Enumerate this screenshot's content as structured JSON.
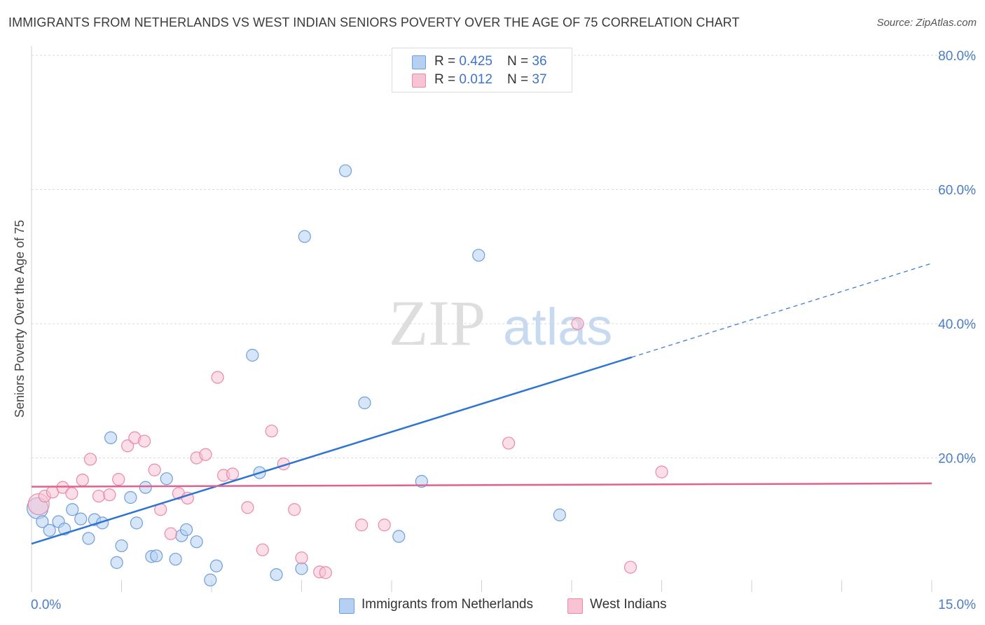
{
  "header": {
    "title": "IMMIGRANTS FROM NETHERLANDS VS WEST INDIAN SENIORS POVERTY OVER THE AGE OF 75 CORRELATION CHART",
    "source": "Source: ZipAtlas.com"
  },
  "legend": {
    "items": [
      {
        "r_label": "R = ",
        "r_value": "0.425",
        "n_label": "N = ",
        "n_value": "36"
      },
      {
        "r_label": "R = ",
        "r_value": "0.012",
        "n_label": "N = ",
        "n_value": "37"
      }
    ]
  },
  "watermark": {
    "part1": "ZIP",
    "part2": "atlas"
  },
  "colors": {
    "blue_fill": "#b5d0f2",
    "blue_stroke": "#6f9fd8",
    "blue_line": "#2f74d0",
    "pink_fill": "#f8c3d3",
    "pink_stroke": "#e88aa8",
    "pink_line": "#e2628f",
    "tick_text": "#4a7cc7"
  },
  "chart_data": {
    "type": "scatter",
    "title": "IMMIGRANTS FROM NETHERLANDS VS WEST INDIAN SENIORS POVERTY OVER THE AGE OF 75 CORRELATION CHART",
    "xlabel": "",
    "ylabel": "Seniors Poverty Over the Age of 75",
    "xlim": [
      0,
      15
    ],
    "ylim": [
      0,
      80
    ],
    "x_tick_labels": [
      "0.0%",
      "15.0%"
    ],
    "y_ticks": [
      20,
      40,
      60,
      80
    ],
    "y_tick_labels": [
      "20.0%",
      "40.0%",
      "60.0%",
      "80.0%"
    ],
    "grid": true,
    "legend_position": "top-center",
    "series": [
      {
        "name": "Immigrants from Netherlands",
        "color": "#6f9fd8",
        "r": 0.425,
        "n": 36,
        "trend": {
          "x0": 0,
          "y0": 7.2,
          "x1": 10.0,
          "y1": 35.0,
          "dash_x1": 15.0,
          "dash_y1": 49.0
        },
        "points": [
          [
            0.1,
            12.5
          ],
          [
            0.18,
            10.5
          ],
          [
            0.3,
            9.2
          ],
          [
            0.45,
            10.5
          ],
          [
            0.55,
            9.4
          ],
          [
            0.68,
            12.3
          ],
          [
            0.82,
            10.9
          ],
          [
            0.95,
            8.0
          ],
          [
            1.05,
            10.8
          ],
          [
            1.18,
            10.3
          ],
          [
            1.32,
            23.0
          ],
          [
            1.42,
            4.4
          ],
          [
            1.5,
            6.9
          ],
          [
            1.65,
            14.1
          ],
          [
            1.75,
            10.3
          ],
          [
            1.9,
            15.6
          ],
          [
            2.0,
            5.3
          ],
          [
            2.08,
            5.4
          ],
          [
            2.25,
            16.9
          ],
          [
            2.4,
            4.9
          ],
          [
            2.5,
            8.4
          ],
          [
            2.58,
            9.3
          ],
          [
            2.75,
            7.5
          ],
          [
            2.98,
            1.8
          ],
          [
            3.08,
            3.9
          ],
          [
            3.68,
            35.3
          ],
          [
            3.8,
            17.8
          ],
          [
            4.08,
            2.6
          ],
          [
            4.5,
            3.5
          ],
          [
            4.55,
            53.0
          ],
          [
            5.23,
            62.8
          ],
          [
            5.55,
            28.2
          ],
          [
            6.12,
            8.3
          ],
          [
            6.5,
            16.5
          ],
          [
            7.45,
            50.2
          ],
          [
            8.8,
            11.5
          ]
        ]
      },
      {
        "name": "West Indians",
        "color": "#e88aa8",
        "r": 0.012,
        "n": 37,
        "trend": {
          "x0": 0,
          "y0": 15.7,
          "x1": 15.0,
          "y1": 16.2
        },
        "points": [
          [
            0.12,
            13.1
          ],
          [
            0.22,
            14.3
          ],
          [
            0.35,
            14.9
          ],
          [
            0.52,
            15.6
          ],
          [
            0.67,
            14.7
          ],
          [
            0.85,
            16.7
          ],
          [
            0.98,
            19.8
          ],
          [
            1.12,
            14.3
          ],
          [
            1.3,
            14.5
          ],
          [
            1.45,
            16.8
          ],
          [
            1.6,
            21.8
          ],
          [
            1.72,
            23.0
          ],
          [
            1.88,
            22.5
          ],
          [
            2.05,
            18.2
          ],
          [
            2.15,
            12.3
          ],
          [
            2.32,
            8.7
          ],
          [
            2.45,
            14.7
          ],
          [
            2.6,
            14.0
          ],
          [
            2.75,
            20.0
          ],
          [
            2.9,
            20.5
          ],
          [
            3.1,
            32.0
          ],
          [
            3.2,
            17.4
          ],
          [
            3.35,
            17.6
          ],
          [
            3.6,
            12.6
          ],
          [
            3.85,
            6.3
          ],
          [
            4.0,
            24.0
          ],
          [
            4.2,
            19.1
          ],
          [
            4.38,
            12.3
          ],
          [
            4.5,
            5.1
          ],
          [
            4.8,
            3.0
          ],
          [
            4.9,
            2.9
          ],
          [
            5.5,
            10.0
          ],
          [
            5.88,
            10.0
          ],
          [
            7.95,
            22.2
          ],
          [
            9.1,
            40.0
          ],
          [
            9.98,
            3.7
          ],
          [
            10.5,
            17.9
          ]
        ]
      }
    ]
  }
}
